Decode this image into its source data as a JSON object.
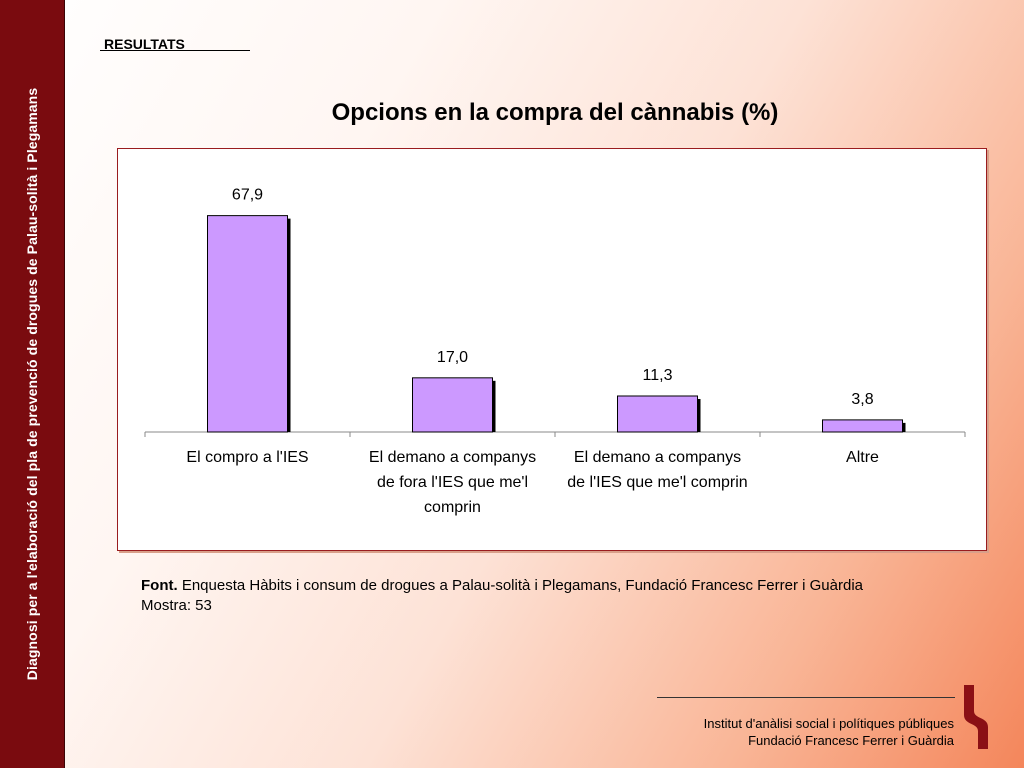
{
  "sidebar": {
    "text": "Diagnosi per a l'elaboració del pla de prevenció de drogues de Palau-solità i Plegamans"
  },
  "header": {
    "section": "RESULTATS",
    "title": "Opcions en la compra del cànnabis (%)"
  },
  "chart_data": {
    "type": "bar",
    "title": "Opcions en la compra del cànnabis (%)",
    "categories": [
      [
        "El compro a l'IES"
      ],
      [
        "El demano a companys",
        "de fora l'IES que me'l",
        "comprin"
      ],
      [
        "El demano a companys",
        "de l'IES que me'l comprin"
      ],
      [
        "Altre"
      ]
    ],
    "values": [
      67.9,
      17.0,
      11.3,
      3.8
    ],
    "value_labels": [
      "67,9",
      "17,0",
      "11,3",
      "3,8"
    ],
    "ylim": [
      0,
      75
    ],
    "grid": false,
    "legend": "none",
    "bar_color": "#cc99ff",
    "bar_edge": "#000000"
  },
  "source": {
    "label": "Font.",
    "text": " Enquesta Hàbits i consum de drogues a Palau-solità i Plegamans, Fundació Francesc Ferrer i Guàrdia",
    "sample": "Mostra: 53"
  },
  "footer": {
    "line1": "Institut d'anàlisi social i polítiques públiques",
    "line2": "Fundació Francesc Ferrer i Guàrdia"
  },
  "colors": {
    "sidebar": "#7a0b0f",
    "frame_border": "#9a1c1f",
    "logo": "#8b1015"
  }
}
